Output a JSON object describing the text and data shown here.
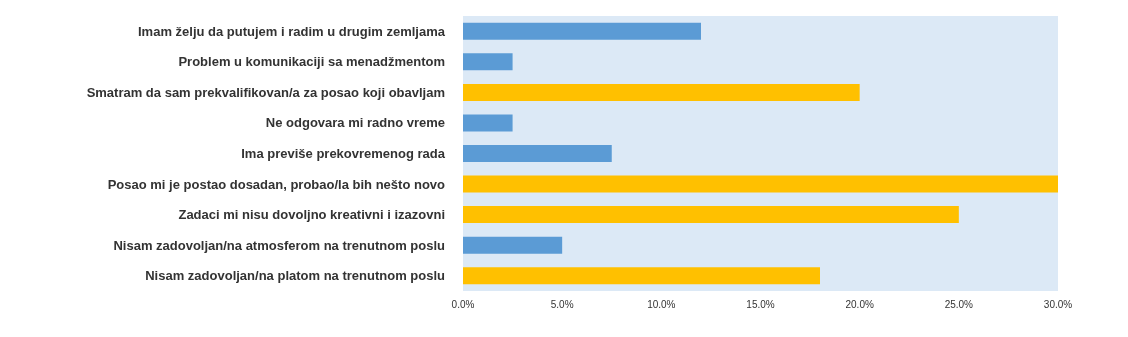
{
  "chart_data": {
    "type": "bar",
    "orientation": "horizontal",
    "categories": [
      "Imam želju da putujem i radim u drugim zemljama",
      "Problem u komunikaciji sa menadžmentom",
      "Smatram da sam prekvalifikovan/a za posao koji obavljam",
      "Ne odgovara mi radno vreme",
      "Ima previše prekovremenog rada",
      "Posao mi je postao dosadan, probao/la bih nešto novo",
      "Zadaci mi nisu dovoljno kreativni i izazovni",
      "Nisam zadovoljan/na atmosferom na trenutnom poslu",
      "Nisam zadovoljan/na platom na trenutnom poslu"
    ],
    "values": [
      12.0,
      2.5,
      20.0,
      2.5,
      7.5,
      30.0,
      25.0,
      5.0,
      18.0
    ],
    "colors": [
      "#5b9bd5",
      "#5b9bd5",
      "#ffc000",
      "#5b9bd5",
      "#5b9bd5",
      "#ffc000",
      "#ffc000",
      "#5b9bd5",
      "#ffc000"
    ],
    "xlim": [
      0,
      30
    ],
    "xticks": [
      {
        "value": 0,
        "label": "0.0%"
      },
      {
        "value": 5,
        "label": "5.0%"
      },
      {
        "value": 10,
        "label": "10.0%"
      },
      {
        "value": 15,
        "label": "15.0%"
      },
      {
        "value": 20,
        "label": "20.0%"
      },
      {
        "value": 25,
        "label": "25.0%"
      },
      {
        "value": 30,
        "label": "30.0%"
      }
    ]
  }
}
